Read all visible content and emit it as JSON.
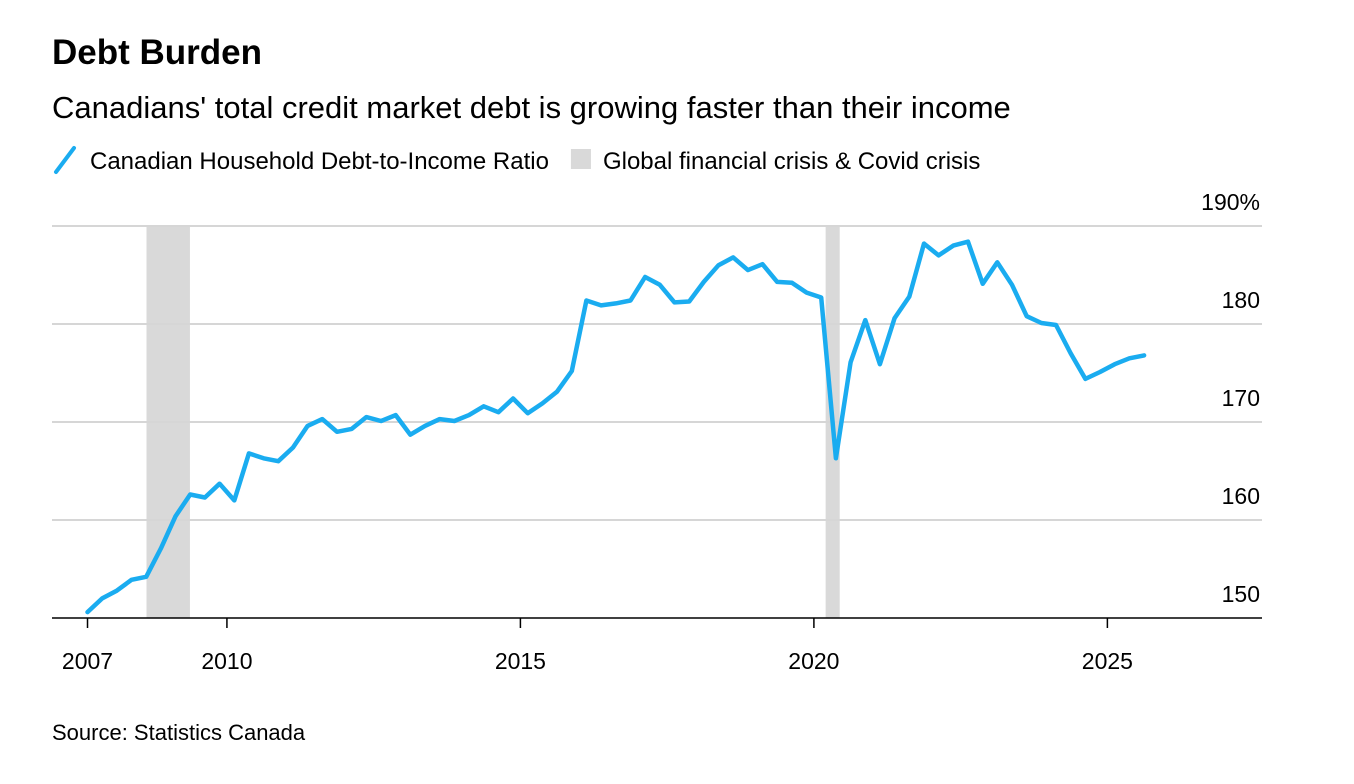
{
  "chart_data": {
    "type": "line",
    "title": "Debt Burden",
    "subtitle": "Canadians' total credit market debt is growing faster than their income",
    "source": "Source: Statistics Canada",
    "x": [
      2007.625,
      2007.875,
      2008.125,
      2008.375,
      2008.625,
      2008.875,
      2009.125,
      2009.375,
      2009.625,
      2009.875,
      2010.125,
      2010.375,
      2010.625,
      2010.875,
      2011.125,
      2011.375,
      2011.625,
      2011.875,
      2012.125,
      2012.375,
      2012.625,
      2012.875,
      2013.125,
      2013.375,
      2013.625,
      2013.875,
      2014.125,
      2014.375,
      2014.625,
      2014.875,
      2015.125,
      2015.375,
      2015.625,
      2015.875,
      2016.125,
      2016.375,
      2016.625,
      2016.875,
      2017.125,
      2017.375,
      2017.625,
      2017.875,
      2018.125,
      2018.375,
      2018.625,
      2018.875,
      2019.125,
      2019.375,
      2019.625,
      2019.875,
      2020.125,
      2020.375,
      2020.625,
      2020.875,
      2021.125,
      2021.375,
      2021.625,
      2021.875,
      2022.125,
      2022.375,
      2022.625,
      2022.875,
      2023.125,
      2023.375,
      2023.625,
      2023.875,
      2024.125,
      2024.375,
      2024.625,
      2024.875,
      2025.125,
      2025.375,
      2025.625
    ],
    "series": [
      {
        "name": "Canadian Household Debt-to-Income Ratio",
        "color": "#1aacf0",
        "values": [
          150.6,
          152.0,
          152.8,
          153.9,
          154.2,
          157.1,
          160.4,
          162.6,
          162.3,
          163.7,
          162.0,
          166.8,
          166.3,
          166.0,
          167.4,
          169.6,
          170.3,
          169.0,
          169.3,
          170.5,
          170.1,
          170.7,
          168.7,
          169.6,
          170.3,
          170.1,
          170.7,
          171.6,
          171.0,
          172.4,
          170.9,
          171.9,
          173.1,
          175.2,
          182.4,
          181.9,
          182.1,
          182.4,
          184.8,
          184.0,
          182.2,
          182.3,
          184.3,
          186.0,
          186.8,
          185.5,
          186.1,
          184.3,
          184.2,
          183.2,
          182.7,
          166.3,
          176.1,
          180.4,
          175.9,
          180.6,
          182.8,
          188.2,
          187.0,
          188.0,
          188.4,
          184.1,
          186.3,
          184.0,
          180.8,
          180.1,
          179.9,
          177.0,
          174.4,
          175.1,
          175.9,
          176.5,
          176.8
        ]
      }
    ],
    "shaded": {
      "name": "Global financial crisis & Covid crisis",
      "color": "#d9d9d9",
      "ranges": [
        [
          2008.63,
          2009.37
        ],
        [
          2020.2,
          2020.44
        ]
      ]
    },
    "xlim": [
      2007.02,
      2027.6
    ],
    "xticks": [
      {
        "value": 2007.625,
        "label": "2007"
      },
      2010,
      2015,
      2020,
      2025
    ],
    "ylim": [
      150,
      190
    ],
    "yticks": [
      {
        "value": 190,
        "label": "190%"
      },
      180,
      170,
      160,
      150
    ],
    "grid": true
  }
}
